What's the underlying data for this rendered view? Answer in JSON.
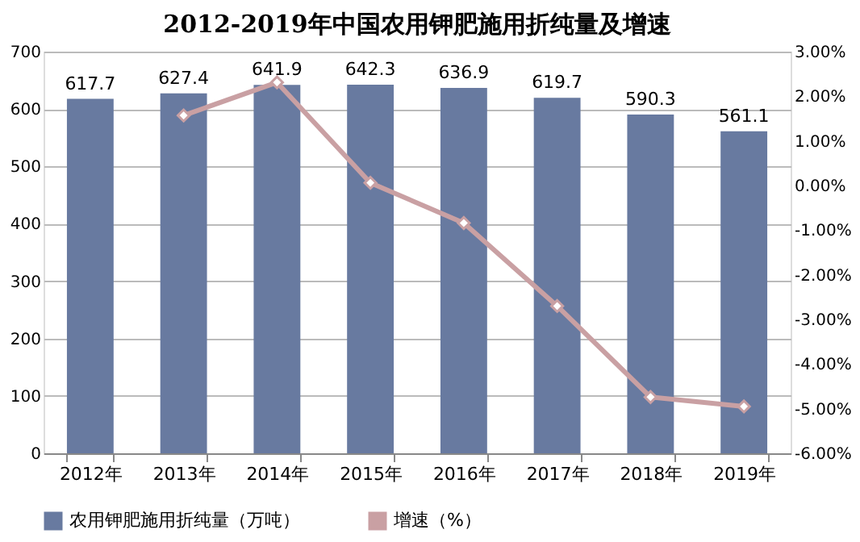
{
  "chart_data": {
    "type": "bar",
    "title": "2012-2019年中国农用钾肥施用折纯量及增速",
    "categories": [
      "2012年",
      "2013年",
      "2014年",
      "2015年",
      "2016年",
      "2017年",
      "2018年",
      "2019年"
    ],
    "series": [
      {
        "name": "农用钾肥施用折纯量（万吨）",
        "color": "#687aa0",
        "values": [
          617.7,
          627.4,
          641.9,
          642.3,
          636.9,
          619.7,
          590.3,
          561.1
        ],
        "value_labels": [
          "617.7",
          "627.4",
          "641.9",
          "642.3",
          "636.9",
          "619.7",
          "590.3",
          "561.1"
        ]
      },
      {
        "name": "增速（%）",
        "type": "line",
        "axis": "y2",
        "color": "#c9a0a3",
        "marker": "diamond",
        "values": [
          null,
          1.57,
          2.31,
          0.06,
          -0.84,
          -2.7,
          -4.74,
          -4.95
        ]
      }
    ],
    "ylim": [
      0,
      700
    ],
    "yticks": [
      0,
      100,
      200,
      300,
      400,
      500,
      600,
      700
    ],
    "y2lim": [
      -6,
      3
    ],
    "y2ticks": [
      {
        "value": -6,
        "label": "-6.00%"
      },
      {
        "value": -5,
        "label": "-5.00%"
      },
      {
        "value": -4,
        "label": "-4.00%"
      },
      {
        "value": -3,
        "label": "-3.00%"
      },
      {
        "value": -2,
        "label": "-2.00%"
      },
      {
        "value": -1,
        "label": "-1.00%"
      },
      {
        "value": 0,
        "label": "0.00%"
      },
      {
        "value": 1,
        "label": "1.00%"
      },
      {
        "value": 2,
        "label": "2.00%"
      },
      {
        "value": 3,
        "label": "3.00%"
      }
    ],
    "grid": "y",
    "legend": "bottom"
  }
}
